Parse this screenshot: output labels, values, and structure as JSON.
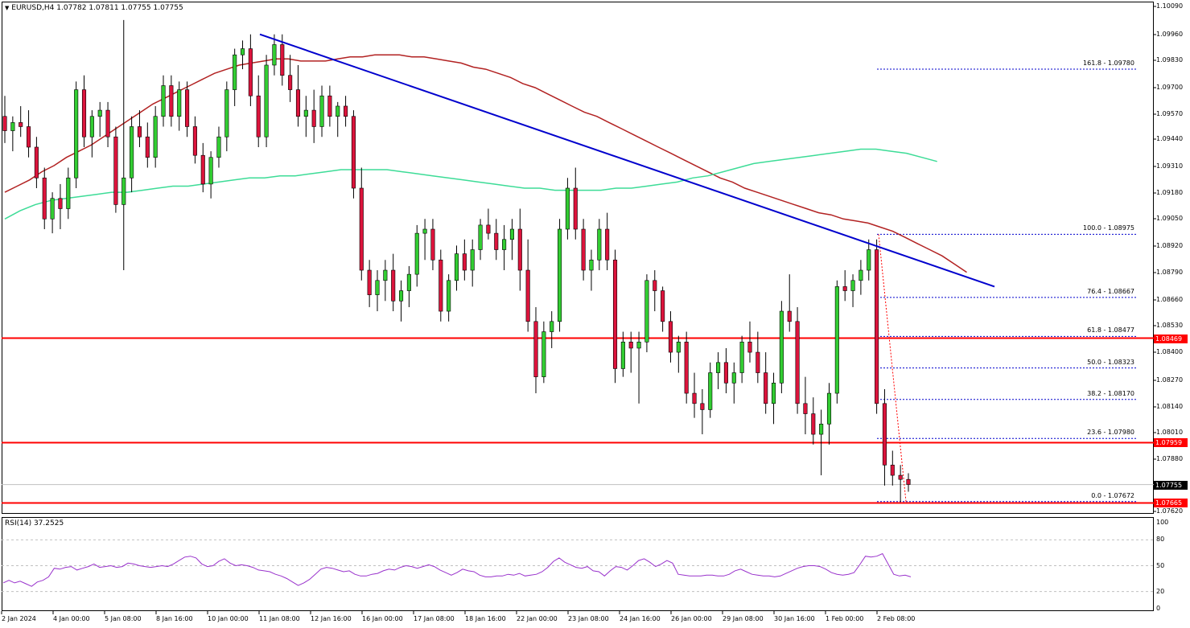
{
  "chart_header": {
    "arrow": "▼",
    "symbol": "EURUSD,H4",
    "ohlc": "1.07782 1.07811 1.07755 1.07755"
  },
  "indicator": {
    "label": "RSI(14) 37.2525"
  },
  "price_scale": [
    "1.10090",
    "1.09960",
    "1.09830",
    "1.09700",
    "1.09570",
    "1.09440",
    "1.09310",
    "1.09180",
    "1.09050",
    "1.08920",
    "1.08790",
    "1.08660",
    "1.08530",
    "1.08400",
    "1.08270",
    "1.08140",
    "1.08010",
    "1.07880",
    "1.07620"
  ],
  "rsi_scale": [
    "100",
    "80",
    "50",
    "20",
    "0"
  ],
  "price_tags": {
    "resistance": "1.08469",
    "support": "1.07959",
    "current": "1.07755",
    "low": "1.07665"
  },
  "fib_levels": [
    {
      "label": "161.8 - 1.09780"
    },
    {
      "label": "100.0 - 1.08975"
    },
    {
      "label": "76.4 - 1.08667"
    },
    {
      "label": "61.8 - 1.08477"
    },
    {
      "label": "50.0 - 1.08323"
    },
    {
      "label": "38.2 - 1.08170"
    },
    {
      "label": "23.6 - 1.07980"
    },
    {
      "label": "0.0 - 1.07672"
    }
  ],
  "time_axis": [
    "2 Jan 2024",
    "4 Jan 00:00",
    "5 Jan 08:00",
    "8 Jan 16:00",
    "10 Jan 00:00",
    "11 Jan 08:00",
    "12 Jan 16:00",
    "16 Jan 00:00",
    "17 Jan 08:00",
    "18 Jan 16:00",
    "22 Jan 00:00",
    "23 Jan 08:00",
    "24 Jan 16:00",
    "26 Jan 00:00",
    "29 Jan 08:00",
    "30 Jan 16:00",
    "1 Feb 00:00",
    "2 Feb 08:00"
  ],
  "colors": {
    "bull": "#32cd32",
    "bear": "#dc143c",
    "trendline": "#0000cd",
    "ma_fast": "#b22222",
    "ma_slow": "#3ddc97",
    "level_line": "#ff0000",
    "rsi": "#9932cc"
  },
  "chart_data": {
    "type": "candlestick",
    "symbol": "EURUSD",
    "timeframe": "H4",
    "ylim": [
      1.0762,
      1.1009
    ],
    "ohlc_last": {
      "open": 1.07782,
      "high": 1.07811,
      "low": 1.07755,
      "close": 1.07755
    },
    "candles": [
      [
        1.0955,
        1.0965,
        1.0942,
        1.0948
      ],
      [
        1.0948,
        1.0955,
        1.0938,
        1.0952
      ],
      [
        1.0952,
        1.096,
        1.0945,
        1.095
      ],
      [
        1.095,
        1.0958,
        1.0935,
        1.094
      ],
      [
        1.094,
        1.0945,
        1.092,
        1.0925
      ],
      [
        1.0925,
        1.093,
        1.09,
        1.0905
      ],
      [
        1.0905,
        1.0918,
        1.0898,
        1.0915
      ],
      [
        1.0915,
        1.0922,
        1.09,
        1.091
      ],
      [
        1.091,
        1.093,
        1.0905,
        1.0925
      ],
      [
        1.0925,
        1.0972,
        1.092,
        1.0968
      ],
      [
        1.0968,
        1.0975,
        1.094,
        1.0945
      ],
      [
        1.0945,
        1.0958,
        1.0935,
        1.0955
      ],
      [
        1.0955,
        1.0962,
        1.0945,
        1.0958
      ],
      [
        1.0958,
        1.0962,
        1.094,
        1.0945
      ],
      [
        1.0945,
        1.095,
        1.0908,
        1.0912
      ],
      [
        1.0912,
        1.1002,
        1.088,
        1.0925
      ],
      [
        1.0925,
        1.0955,
        1.0918,
        1.095
      ],
      [
        1.095,
        1.0958,
        1.094,
        1.0945
      ],
      [
        1.0945,
        1.0952,
        1.093,
        1.0935
      ],
      [
        1.0935,
        1.096,
        1.093,
        1.0955
      ],
      [
        1.0955,
        1.0975,
        1.095,
        1.097
      ],
      [
        1.097,
        1.0975,
        1.095,
        1.0955
      ],
      [
        1.0955,
        1.0972,
        1.0948,
        1.0968
      ],
      [
        1.0968,
        1.0972,
        1.0945,
        1.095
      ],
      [
        1.095,
        1.0955,
        1.0932,
        1.0936
      ],
      [
        1.0936,
        1.0942,
        1.0918,
        1.0922
      ],
      [
        1.0922,
        1.0938,
        1.0915,
        1.0935
      ],
      [
        1.0935,
        1.095,
        1.093,
        1.0945
      ],
      [
        1.0945,
        1.0972,
        1.0938,
        1.0968
      ],
      [
        1.0968,
        1.0988,
        1.096,
        1.0985
      ],
      [
        1.0985,
        1.0992,
        1.0978,
        1.0988
      ],
      [
        1.0988,
        1.0995,
        1.096,
        1.0965
      ],
      [
        1.0965,
        1.0975,
        1.094,
        1.0945
      ],
      [
        1.0945,
        1.0985,
        1.094,
        1.098
      ],
      [
        1.098,
        1.0995,
        1.0975,
        1.099
      ],
      [
        1.099,
        1.0995,
        1.097,
        1.0975
      ],
      [
        1.0975,
        1.0985,
        1.0962,
        1.0968
      ],
      [
        1.0968,
        1.098,
        1.095,
        1.0955
      ],
      [
        1.0955,
        1.0965,
        1.0945,
        1.0958
      ],
      [
        1.0958,
        1.0968,
        1.0942,
        1.095
      ],
      [
        1.095,
        1.097,
        1.0945,
        1.0965
      ],
      [
        1.0965,
        1.097,
        1.095,
        1.0955
      ],
      [
        1.0955,
        1.0962,
        1.0945,
        1.096
      ],
      [
        1.096,
        1.0965,
        1.095,
        1.0955
      ],
      [
        1.0955,
        1.0958,
        1.0915,
        1.092
      ],
      [
        1.092,
        1.093,
        1.0875,
        1.088
      ],
      [
        1.088,
        1.0885,
        1.0862,
        1.0868
      ],
      [
        1.0868,
        1.088,
        1.086,
        1.0875
      ],
      [
        1.0875,
        1.0885,
        1.0865,
        1.088
      ],
      [
        1.088,
        1.0888,
        1.086,
        1.0865
      ],
      [
        1.0865,
        1.0875,
        1.0855,
        1.087
      ],
      [
        1.087,
        1.0882,
        1.0862,
        1.0878
      ],
      [
        1.0878,
        1.0902,
        1.0872,
        1.0898
      ],
      [
        1.0898,
        1.0905,
        1.0885,
        1.09
      ],
      [
        1.09,
        1.0905,
        1.088,
        1.0885
      ],
      [
        1.0885,
        1.089,
        1.0855,
        1.086
      ],
      [
        1.086,
        1.0878,
        1.0855,
        1.0875
      ],
      [
        1.0875,
        1.0892,
        1.087,
        1.0888
      ],
      [
        1.0888,
        1.0895,
        1.0875,
        1.088
      ],
      [
        1.088,
        1.0895,
        1.0872,
        1.089
      ],
      [
        1.089,
        1.0905,
        1.0885,
        1.0902
      ],
      [
        1.0902,
        1.091,
        1.0895,
        1.0898
      ],
      [
        1.0898,
        1.0905,
        1.0885,
        1.089
      ],
      [
        1.089,
        1.0902,
        1.088,
        1.0895
      ],
      [
        1.0895,
        1.0905,
        1.0885,
        1.09
      ],
      [
        1.09,
        1.091,
        1.087,
        1.088
      ],
      [
        1.088,
        1.0895,
        1.085,
        1.0855
      ],
      [
        1.0855,
        1.0862,
        1.082,
        1.0828
      ],
      [
        1.0828,
        1.0855,
        1.0825,
        1.085
      ],
      [
        1.085,
        1.086,
        1.0842,
        1.0855
      ],
      [
        1.0855,
        1.0905,
        1.085,
        1.09
      ],
      [
        1.09,
        1.0925,
        1.0895,
        1.092
      ],
      [
        1.092,
        1.093,
        1.0895,
        1.09
      ],
      [
        1.09,
        1.0905,
        1.0875,
        1.088
      ],
      [
        1.088,
        1.089,
        1.087,
        1.0885
      ],
      [
        1.0885,
        1.0905,
        1.088,
        1.09
      ],
      [
        1.09,
        1.0908,
        1.088,
        1.0885
      ],
      [
        1.0885,
        1.089,
        1.0825,
        1.0832
      ],
      [
        1.0832,
        1.085,
        1.0828,
        1.0845
      ],
      [
        1.0845,
        1.085,
        1.083,
        1.0842
      ],
      [
        1.0842,
        1.085,
        1.0815,
        1.0845
      ],
      [
        1.0845,
        1.0878,
        1.084,
        1.0875
      ],
      [
        1.0875,
        1.088,
        1.086,
        1.087
      ],
      [
        1.087,
        1.0872,
        1.085,
        1.0855
      ],
      [
        1.0855,
        1.086,
        1.0835,
        1.084
      ],
      [
        1.084,
        1.0848,
        1.083,
        1.0845
      ],
      [
        1.0845,
        1.085,
        1.0815,
        1.082
      ],
      [
        1.082,
        1.083,
        1.0808,
        1.0815
      ],
      [
        1.0815,
        1.0822,
        1.08,
        1.0812
      ],
      [
        1.0812,
        1.0835,
        1.0808,
        1.083
      ],
      [
        1.083,
        1.084,
        1.0822,
        1.0835
      ],
      [
        1.0835,
        1.0842,
        1.082,
        1.0825
      ],
      [
        1.0825,
        1.0835,
        1.0815,
        1.083
      ],
      [
        1.083,
        1.0848,
        1.0825,
        1.0845
      ],
      [
        1.0845,
        1.0855,
        1.0835,
        1.084
      ],
      [
        1.084,
        1.085,
        1.0825,
        1.083
      ],
      [
        1.083,
        1.084,
        1.081,
        1.0815
      ],
      [
        1.0815,
        1.083,
        1.0805,
        1.0825
      ],
      [
        1.0825,
        1.0865,
        1.082,
        1.086
      ],
      [
        1.086,
        1.0878,
        1.085,
        1.0855
      ],
      [
        1.0855,
        1.0862,
        1.081,
        1.0815
      ],
      [
        1.0815,
        1.0828,
        1.08,
        1.081
      ],
      [
        1.081,
        1.0818,
        1.0795,
        1.08
      ],
      [
        1.08,
        1.0812,
        1.078,
        1.0805
      ],
      [
        1.0805,
        1.0825,
        1.0795,
        1.082
      ],
      [
        1.082,
        1.0875,
        1.0815,
        1.0872
      ],
      [
        1.0872,
        1.088,
        1.0865,
        1.087
      ],
      [
        1.087,
        1.0878,
        1.0862,
        1.0875
      ],
      [
        1.0875,
        1.0885,
        1.0868,
        1.088
      ],
      [
        1.088,
        1.0895,
        1.0875,
        1.089
      ],
      [
        1.089,
        1.0895,
        1.081,
        1.0815
      ],
      [
        1.0815,
        1.0822,
        1.0775,
        1.0785
      ],
      [
        1.0785,
        1.0792,
        1.0775,
        1.078
      ],
      [
        1.078,
        1.0785,
        1.0767,
        1.0778
      ],
      [
        1.0778,
        1.0781,
        1.0772,
        1.07755
      ]
    ],
    "ma_fast": [
      1.0918,
      1.0921,
      1.0924,
      1.0928,
      1.0931,
      1.0935,
      1.0938,
      1.0941,
      1.0945,
      1.0949,
      1.0953,
      1.0957,
      1.0961,
      1.0964,
      1.0967,
      1.097,
      1.0973,
      1.0976,
      1.0978,
      1.098,
      1.0981,
      1.0982,
      1.0983,
      1.0983,
      1.0982,
      1.0982,
      1.0982,
      1.0983,
      1.0984,
      1.0984,
      1.0985,
      1.0985,
      1.0985,
      1.0984,
      1.0984,
      1.0983,
      1.0982,
      1.0981,
      1.0979,
      1.0978,
      1.0976,
      1.0974,
      1.0971,
      1.0969,
      1.0966,
      1.0963,
      1.096,
      1.0957,
      1.0955,
      1.0952,
      1.0949,
      1.0946,
      1.0943,
      1.094,
      1.0937,
      1.0934,
      1.0931,
      1.0928,
      1.0925,
      1.0923,
      1.092,
      1.0918,
      1.0916,
      1.0914,
      1.0912,
      1.091,
      1.0908,
      1.0907,
      1.0905,
      1.0904,
      1.0903,
      1.0901,
      1.0899,
      1.0896,
      1.0893,
      1.089,
      1.0887,
      1.0883,
      1.0879
    ],
    "ma_slow": [
      1.0905,
      1.0909,
      1.0912,
      1.0914,
      1.0915,
      1.0916,
      1.0917,
      1.0918,
      1.0918,
      1.0919,
      1.092,
      1.0921,
      1.0921,
      1.0922,
      1.0923,
      1.0924,
      1.0925,
      1.0925,
      1.0926,
      1.0926,
      1.0927,
      1.0928,
      1.0929,
      1.0929,
      1.0929,
      1.0929,
      1.0928,
      1.0927,
      1.0926,
      1.0925,
      1.0924,
      1.0923,
      1.0922,
      1.0921,
      1.092,
      1.092,
      1.0919,
      1.0919,
      1.0919,
      1.0919,
      1.092,
      1.092,
      1.0921,
      1.0922,
      1.0923,
      1.0925,
      1.0926,
      1.0928,
      1.093,
      1.0932,
      1.0933,
      1.0934,
      1.0935,
      1.0936,
      1.0937,
      1.0938,
      1.0939,
      1.0939,
      1.0938,
      1.0937,
      1.0935,
      1.0933
    ],
    "trendline": [
      [
        1.0995
      ],
      [
        1.0872
      ]
    ],
    "levels": [
      1.08469,
      1.07959,
      1.07665
    ],
    "fibonacci": {
      "high": 1.08975,
      "low": 1.07672,
      "ratios": [
        161.8,
        100.0,
        76.4,
        61.8,
        50.0,
        38.2,
        23.6,
        0.0
      ]
    },
    "rsi": [
      30,
      33,
      30,
      32,
      29,
      26,
      31,
      33,
      37,
      47,
      46,
      48,
      49,
      45,
      47,
      49,
      52,
      48,
      49,
      50,
      48,
      49,
      53,
      52,
      50,
      49,
      48,
      49,
      50,
      49,
      52,
      56,
      60,
      61,
      59,
      52,
      49,
      50,
      55,
      58,
      53,
      50,
      51,
      50,
      48,
      45,
      44,
      43,
      40,
      38,
      35,
      31,
      27,
      30,
      34,
      40,
      46,
      48,
      47,
      45,
      43,
      44,
      40,
      38,
      38,
      40,
      41,
      44,
      46,
      45,
      48,
      50,
      49,
      47,
      49,
      51,
      49,
      45,
      42,
      39,
      42,
      46,
      44,
      43,
      39,
      37,
      37,
      38,
      38,
      40,
      39,
      41,
      38,
      39,
      40,
      43,
      48,
      55,
      59,
      54,
      51,
      48,
      47,
      49,
      44,
      43,
      38,
      44,
      49,
      48,
      45,
      50,
      56,
      58,
      54,
      49,
      52,
      56,
      53,
      40,
      39,
      38,
      38,
      38,
      39,
      39,
      38,
      38,
      40,
      44,
      46,
      43,
      40,
      39,
      38,
      38,
      37,
      38,
      41,
      44,
      47,
      49,
      50,
      50,
      49,
      46,
      42,
      40,
      39,
      40,
      42,
      51,
      61,
      60,
      61,
      64,
      52,
      40,
      38,
      39,
      37
    ],
    "rsi_ylim": [
      0,
      100
    ]
  }
}
